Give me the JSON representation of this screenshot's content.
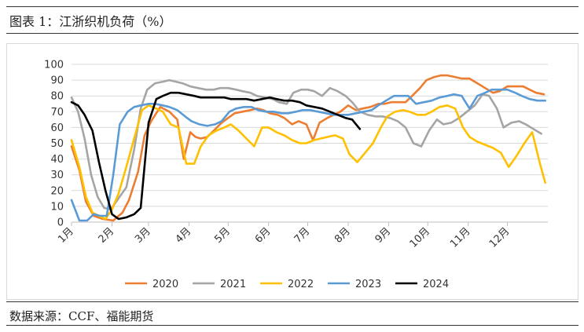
{
  "figure": {
    "title": "图表 1：江浙织机负荷（%）",
    "source": "数据来源：CCF、福能期货"
  },
  "chart_data": {
    "type": "line",
    "title": "",
    "xlabel": "",
    "ylabel": "",
    "ylim": [
      0,
      100
    ],
    "yticks": [
      0,
      10,
      20,
      30,
      40,
      50,
      60,
      70,
      80,
      90,
      100
    ],
    "xlim": [
      0,
      365
    ],
    "xticks": [
      {
        "label": "1月",
        "day": 0
      },
      {
        "label": "2月",
        "day": 31
      },
      {
        "label": "3月",
        "day": 59
      },
      {
        "label": "4月",
        "day": 90
      },
      {
        "label": "5月",
        "day": 120
      },
      {
        "label": "6月",
        "day": 151
      },
      {
        "label": "7月",
        "day": 181
      },
      {
        "label": "8月",
        "day": 212
      },
      {
        "label": "9月",
        "day": 243
      },
      {
        "label": "10月",
        "day": 273
      },
      {
        "label": "11月",
        "day": 304
      },
      {
        "label": "12月",
        "day": 334
      }
    ],
    "grid": true,
    "legend_position": "bottom",
    "series": [
      {
        "name": "2020",
        "color": "#ED7D31",
        "x": [
          0,
          6,
          11,
          17,
          24,
          32,
          39,
          44,
          51,
          56,
          61,
          68,
          75,
          81,
          86,
          91,
          95,
          99,
          104,
          109,
          115,
          120,
          125,
          131,
          137,
          142,
          147,
          152,
          158,
          163,
          169,
          174,
          180,
          185,
          190,
          196,
          201,
          206,
          212,
          218,
          223,
          229,
          235,
          240,
          245,
          251,
          256,
          261,
          267,
          272,
          278,
          283,
          288,
          294,
          299,
          305,
          311,
          317,
          323,
          328,
          334,
          340,
          346,
          351,
          356,
          362
        ],
        "y": [
          48,
          33,
          13,
          4,
          2,
          1,
          6,
          14,
          32,
          55,
          64,
          73,
          70,
          65,
          40,
          57,
          54,
          53,
          54,
          58,
          63,
          66,
          69,
          70,
          71,
          72,
          71,
          69,
          68,
          66,
          62,
          64,
          62,
          52,
          63,
          66,
          68,
          70,
          74,
          71,
          72,
          73,
          75,
          75,
          76,
          76,
          76,
          80,
          85,
          90,
          92,
          93,
          93,
          92,
          91,
          91,
          88,
          85,
          82,
          83,
          86,
          86,
          86,
          84,
          82,
          81
        ]
      },
      {
        "name": "2021",
        "color": "#A5A5A5",
        "x": [
          0,
          5,
          10,
          15,
          20,
          25,
          30,
          36,
          42,
          48,
          53,
          58,
          64,
          70,
          75,
          80,
          85,
          91,
          97,
          103,
          109,
          114,
          120,
          126,
          131,
          137,
          142,
          148,
          154,
          159,
          165,
          170,
          176,
          181,
          186,
          192,
          198,
          204,
          210,
          215,
          221,
          227,
          233,
          238,
          244,
          250,
          256,
          262,
          268,
          274,
          280,
          285,
          291,
          297,
          303,
          309,
          315,
          320,
          326,
          331,
          337,
          343,
          348,
          354,
          360
        ],
        "y": [
          79,
          70,
          53,
          30,
          16,
          9,
          8,
          15,
          22,
          46,
          72,
          84,
          88,
          89,
          90,
          89,
          88,
          86,
          85,
          84,
          84,
          85,
          85,
          84,
          83,
          82,
          80,
          79,
          78,
          76,
          75,
          82,
          84,
          84,
          83,
          80,
          85,
          83,
          80,
          76,
          70,
          68,
          67,
          67,
          66,
          64,
          60,
          50,
          48,
          58,
          65,
          62,
          63,
          66,
          70,
          74,
          81,
          80,
          72,
          60,
          63,
          64,
          62,
          59,
          56
        ]
      },
      {
        "name": "2022",
        "color": "#FFC000",
        "x": [
          0,
          6,
          11,
          16,
          21,
          26,
          31,
          36,
          42,
          48,
          54,
          59,
          65,
          70,
          76,
          82,
          88,
          94,
          99,
          105,
          111,
          117,
          122,
          128,
          134,
          140,
          146,
          151,
          157,
          163,
          169,
          175,
          180,
          186,
          191,
          196,
          202,
          208,
          213,
          219,
          225,
          231,
          237,
          242,
          248,
          254,
          259,
          265,
          271,
          276,
          282,
          288,
          294,
          300,
          305,
          311,
          317,
          323,
          329,
          335,
          341,
          347,
          353,
          359,
          363
        ],
        "y": [
          52,
          35,
          16,
          6,
          4,
          2,
          8,
          18,
          35,
          53,
          71,
          74,
          72,
          70,
          62,
          60,
          37,
          37,
          48,
          55,
          58,
          60,
          62,
          58,
          53,
          48,
          60,
          60,
          57,
          55,
          52,
          50,
          50,
          52,
          53,
          54,
          55,
          53,
          43,
          38,
          44,
          50,
          60,
          67,
          70,
          71,
          70,
          68,
          68,
          70,
          73,
          74,
          72,
          60,
          54,
          51,
          49,
          47,
          44,
          35,
          42,
          50,
          57,
          37,
          25
        ]
      },
      {
        "name": "2023",
        "color": "#5B9BD5",
        "x": [
          0,
          6,
          12,
          17,
          22,
          27,
          32,
          37,
          43,
          48,
          53,
          59,
          64,
          70,
          75,
          81,
          87,
          92,
          98,
          104,
          110,
          115,
          121,
          126,
          132,
          138,
          143,
          149,
          155,
          161,
          166,
          172,
          177,
          183,
          189,
          195,
          201,
          207,
          212,
          218,
          224,
          230,
          235,
          241,
          247,
          253,
          258,
          264,
          270,
          276,
          282,
          288,
          293,
          299,
          305,
          311,
          317,
          322,
          328,
          334,
          340,
          345,
          351,
          357,
          363
        ],
        "y": [
          14,
          1,
          1,
          5,
          4,
          4,
          30,
          62,
          70,
          73,
          74,
          75,
          75,
          74,
          73,
          71,
          67,
          64,
          62,
          61,
          62,
          64,
          70,
          72,
          73,
          73,
          71,
          70,
          70,
          69,
          69,
          70,
          71,
          71,
          70,
          69,
          68,
          68,
          68,
          69,
          70,
          71,
          74,
          77,
          80,
          80,
          80,
          75,
          76,
          77,
          79,
          80,
          81,
          80,
          72,
          80,
          82,
          84,
          84,
          84,
          82,
          80,
          78,
          77,
          77
        ]
      },
      {
        "name": "2024",
        "color": "#000000",
        "x": [
          0,
          5,
          10,
          16,
          21,
          26,
          31,
          36,
          42,
          48,
          53,
          59,
          65,
          70,
          76,
          82,
          88,
          94,
          99,
          105,
          111,
          117,
          122,
          128,
          134,
          140,
          146,
          152,
          157,
          163,
          169,
          175,
          180,
          186,
          192,
          198,
          204,
          210,
          215,
          221
        ],
        "y": [
          76,
          74,
          68,
          58,
          38,
          20,
          5,
          2,
          3,
          5,
          9,
          63,
          78,
          80,
          82,
          82,
          81,
          80,
          79,
          79,
          79,
          79,
          78,
          78,
          78,
          77,
          78,
          79,
          78,
          77,
          77,
          76,
          74,
          73,
          72,
          70,
          68,
          66,
          65,
          59
        ]
      }
    ]
  }
}
